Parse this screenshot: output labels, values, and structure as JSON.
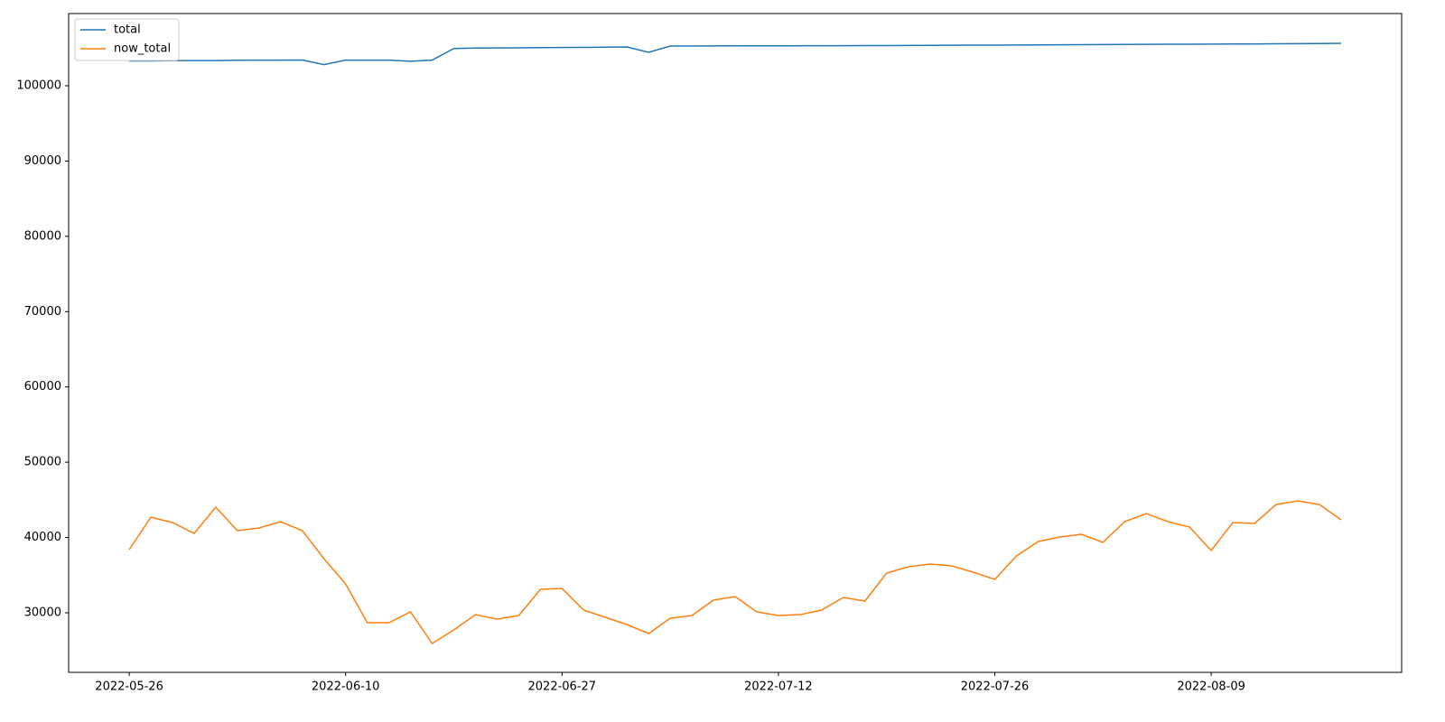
{
  "chart_data": {
    "type": "line",
    "categories": [
      "2022-05-26",
      null,
      null,
      null,
      null,
      null,
      null,
      null,
      null,
      null,
      "2022-06-10",
      null,
      null,
      null,
      null,
      null,
      null,
      null,
      null,
      null,
      "2022-06-27",
      null,
      null,
      null,
      null,
      null,
      null,
      null,
      null,
      null,
      "2022-07-12",
      null,
      null,
      null,
      null,
      null,
      null,
      null,
      null,
      null,
      "2022-07-26",
      null,
      null,
      null,
      null,
      null,
      null,
      null,
      null,
      null,
      "2022-08-09",
      null,
      null,
      null,
      null,
      null,
      null
    ],
    "series": [
      {
        "name": "total",
        "color": "#1f77b4",
        "values": [
          103300,
          103300,
          103350,
          103350,
          103350,
          103380,
          103400,
          103400,
          103420,
          102800,
          103400,
          103400,
          103400,
          103250,
          103400,
          104950,
          105000,
          105020,
          105040,
          105060,
          105080,
          105100,
          105120,
          105150,
          104430,
          105270,
          105280,
          105290,
          105300,
          105300,
          105310,
          105310,
          105320,
          105320,
          105330,
          105340,
          105350,
          105370,
          105380,
          105390,
          105400,
          105410,
          105420,
          105440,
          105460,
          105470,
          105480,
          105500,
          105510,
          105520,
          105530,
          105540,
          105550,
          105570,
          105590,
          105610,
          105640
        ]
      },
      {
        "name": "now_total",
        "color": "#ff7f0e",
        "values": [
          38390,
          42700,
          41990,
          40550,
          44020,
          40910,
          41270,
          42110,
          40910,
          37190,
          33840,
          28680,
          28680,
          30120,
          25920,
          27720,
          29760,
          29160,
          29640,
          33120,
          33240,
          30360,
          29400,
          28440,
          27240,
          29280,
          29640,
          31680,
          32160,
          30120,
          29640,
          29760,
          30360,
          32040,
          31560,
          35270,
          36110,
          36470,
          36230,
          35390,
          34430,
          37550,
          39470,
          40070,
          40430,
          39350,
          42110,
          43180,
          42110,
          41390,
          38270,
          41990,
          41870,
          44380,
          44860,
          44380,
          42350
        ]
      }
    ],
    "ylim": [
      22090,
      109590
    ],
    "yticks": [
      30000,
      40000,
      50000,
      60000,
      70000,
      80000,
      90000,
      100000
    ],
    "legend": "upper left"
  }
}
